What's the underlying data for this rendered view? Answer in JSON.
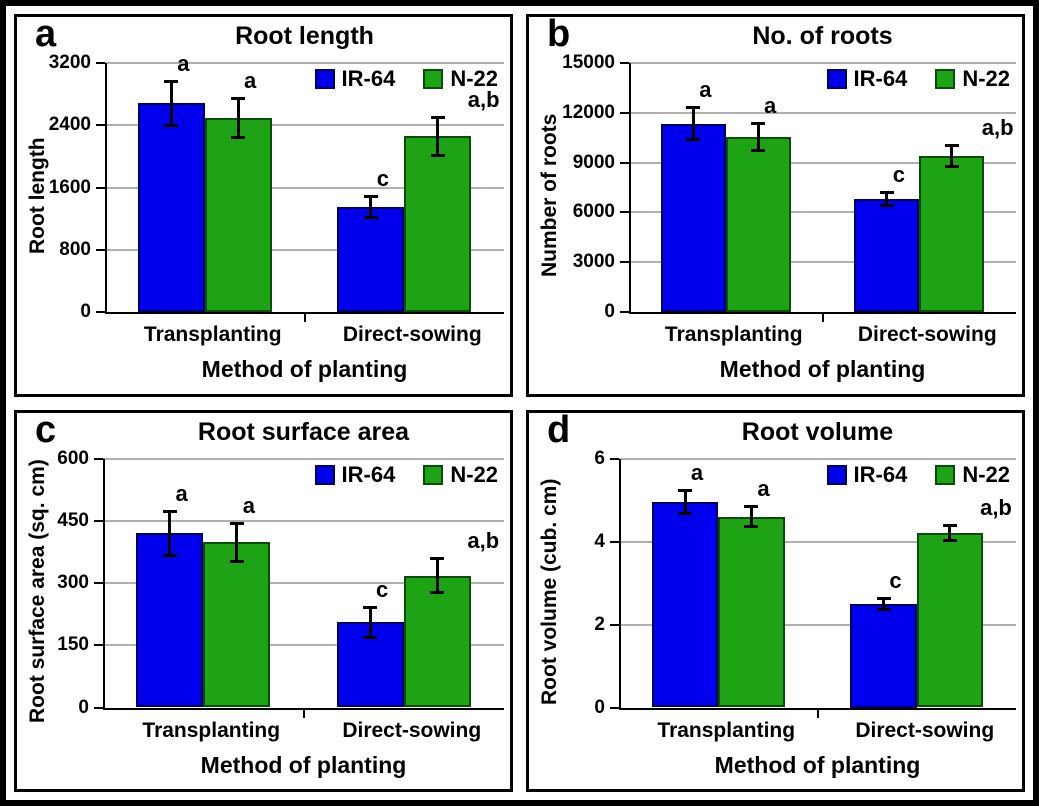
{
  "figure": {
    "background_color": "#ffffff",
    "gridline_color": "#b0b0b0",
    "axis_color": "#000000",
    "series_colors": {
      "IR-64": "#0000ef",
      "N-22": "#1ea314"
    },
    "xlabel": "Method of planting",
    "categories": [
      "Transplanting",
      "Direct-sowing"
    ]
  },
  "chart_data": [
    {
      "type": "bar",
      "panel_letter": "a",
      "title": "Root length",
      "ylabel": "Root length",
      "xlabel": "Method of planting",
      "categories": [
        "Transplanting",
        "Direct-sowing"
      ],
      "ylim": [
        0,
        3200
      ],
      "yticks": [
        0,
        800,
        1600,
        2400,
        3200
      ],
      "grid": true,
      "legend_position": "top-right",
      "series": [
        {
          "name": "IR-64",
          "color": "#0000ef",
          "border_color": "#000060",
          "values": [
            2680,
            1350
          ],
          "errors": [
            300,
            155
          ],
          "sig_labels": [
            "a",
            "c"
          ]
        },
        {
          "name": "N-22",
          "color": "#1ea314",
          "border_color": "#0a4d0a",
          "values": [
            2490,
            2260
          ],
          "errors": [
            270,
            265
          ],
          "sig_labels": [
            "a",
            "a,b"
          ]
        }
      ]
    },
    {
      "type": "bar",
      "panel_letter": "b",
      "title": "No. of roots",
      "ylabel": "Number of roots",
      "xlabel": "Method of planting",
      "categories": [
        "Transplanting",
        "Direct-sowing"
      ],
      "ylim": [
        0,
        15000
      ],
      "yticks": [
        0,
        3000,
        6000,
        9000,
        12000,
        15000
      ],
      "grid": true,
      "legend_position": "top-right",
      "series": [
        {
          "name": "IR-64",
          "color": "#0000ef",
          "border_color": "#000060",
          "values": [
            11350,
            6800
          ],
          "errors": [
            1050,
            500
          ],
          "sig_labels": [
            "a",
            "c"
          ]
        },
        {
          "name": "N-22",
          "color": "#1ea314",
          "border_color": "#0a4d0a",
          "values": [
            10550,
            9400
          ],
          "errors": [
            900,
            750
          ],
          "sig_labels": [
            "a",
            "a,b"
          ]
        }
      ]
    },
    {
      "type": "bar",
      "panel_letter": "c",
      "title": "Root surface area",
      "ylabel": "Root surface area (sq. cm)",
      "xlabel": "Method of planting",
      "categories": [
        "Transplanting",
        "Direct-sowing"
      ],
      "ylim": [
        0,
        600
      ],
      "yticks": [
        0,
        150,
        300,
        450,
        600
      ],
      "grid": true,
      "legend_position": "top-right",
      "series": [
        {
          "name": "IR-64",
          "color": "#0000ef",
          "border_color": "#000060",
          "values": [
            420,
            205
          ],
          "errors": [
            57,
            40
          ],
          "sig_labels": [
            "a",
            "c"
          ]
        },
        {
          "name": "N-22",
          "color": "#1ea314",
          "border_color": "#0a4d0a",
          "values": [
            398,
            318
          ],
          "errors": [
            50,
            44
          ],
          "sig_labels": [
            "a",
            "a,b"
          ]
        }
      ]
    },
    {
      "type": "bar",
      "panel_letter": "d",
      "title": "Root volume",
      "ylabel": "Root volume (cub. cm)",
      "xlabel": "Method of planting",
      "categories": [
        "Transplanting",
        "Direct-sowing"
      ],
      "ylim": [
        0,
        6
      ],
      "yticks": [
        0,
        2,
        4,
        6
      ],
      "grid": true,
      "legend_position": "top-right",
      "series": [
        {
          "name": "IR-64",
          "color": "#0000ef",
          "border_color": "#000060",
          "values": [
            4.95,
            2.5
          ],
          "errors": [
            0.32,
            0.17
          ],
          "sig_labels": [
            "a",
            "c"
          ]
        },
        {
          "name": "N-22",
          "color": "#1ea314",
          "border_color": "#0a4d0a",
          "values": [
            4.6,
            4.2
          ],
          "errors": [
            0.27,
            0.21
          ],
          "sig_labels": [
            "a",
            "a,b"
          ]
        }
      ]
    }
  ]
}
